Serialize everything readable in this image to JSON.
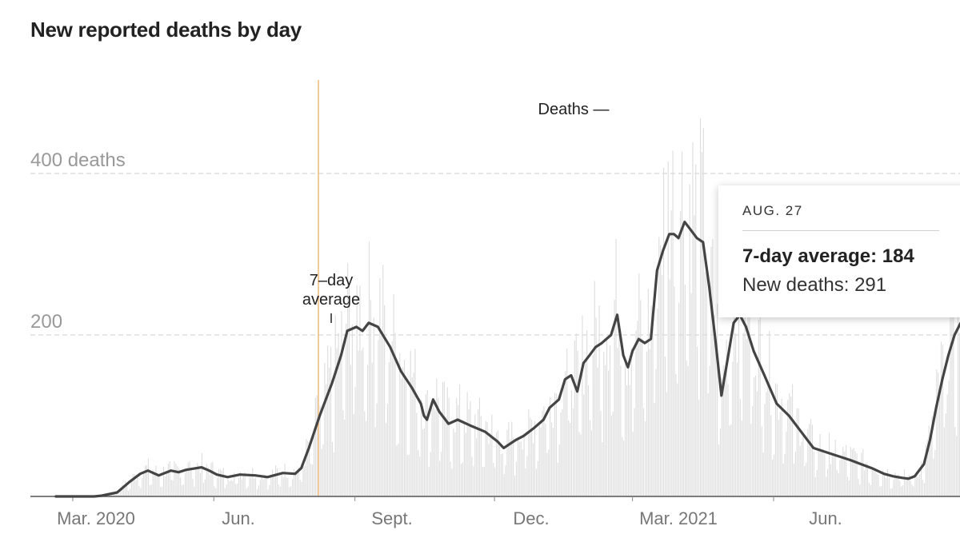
{
  "title": "New reported deaths by day",
  "tooltip": {
    "date": "AUG. 27",
    "avg_label": "7-day average: 184",
    "new_label": "New deaths: 291"
  },
  "chart_data": {
    "type": "bar",
    "title": "New reported deaths by day",
    "y_unit_label": "deaths",
    "ylim": [
      0,
      500
    ],
    "y_ticks": [
      {
        "value": 400,
        "label": "400 deaths"
      },
      {
        "value": 200,
        "label": "200"
      }
    ],
    "x_ticks": [
      {
        "day": 11,
        "label": "Mar. 2020"
      },
      {
        "day": 103,
        "label": "Jun."
      },
      {
        "day": 195,
        "label": "Sept."
      },
      {
        "day": 286,
        "label": "Dec."
      },
      {
        "day": 376,
        "label": "Mar. 2021"
      },
      {
        "day": 468,
        "label": "Jun."
      }
    ],
    "x_range_days": [
      -2,
      556
    ],
    "x_origin_date": "2020-02-20",
    "grid": "horizontal dashed",
    "series": [
      {
        "name": "Deaths",
        "style": "bars",
        "color": "#dddddd"
      },
      {
        "name": "7-day average",
        "style": "line",
        "color": "#444444",
        "points": [
          [
            0,
            0
          ],
          [
            25,
            0
          ],
          [
            30,
            1
          ],
          [
            40,
            5
          ],
          [
            48,
            18
          ],
          [
            55,
            28
          ],
          [
            60,
            32
          ],
          [
            67,
            26
          ],
          [
            75,
            32
          ],
          [
            80,
            30
          ],
          [
            85,
            33
          ],
          [
            95,
            36
          ],
          [
            100,
            32
          ],
          [
            105,
            27
          ],
          [
            112,
            24
          ],
          [
            120,
            27
          ],
          [
            130,
            26
          ],
          [
            138,
            24
          ],
          [
            148,
            29
          ],
          [
            156,
            28
          ],
          [
            160,
            35
          ],
          [
            165,
            60
          ],
          [
            172,
            100
          ],
          [
            180,
            140
          ],
          [
            186,
            175
          ],
          [
            190,
            205
          ],
          [
            196,
            210
          ],
          [
            200,
            205
          ],
          [
            204,
            215
          ],
          [
            210,
            210
          ],
          [
            218,
            185
          ],
          [
            225,
            155
          ],
          [
            232,
            135
          ],
          [
            238,
            115
          ],
          [
            240,
            100
          ],
          [
            242,
            95
          ],
          [
            246,
            120
          ],
          [
            250,
            105
          ],
          [
            256,
            90
          ],
          [
            262,
            95
          ],
          [
            270,
            88
          ],
          [
            280,
            80
          ],
          [
            288,
            68
          ],
          [
            292,
            60
          ],
          [
            300,
            70
          ],
          [
            305,
            75
          ],
          [
            312,
            85
          ],
          [
            318,
            95
          ],
          [
            322,
            110
          ],
          [
            328,
            120
          ],
          [
            332,
            145
          ],
          [
            336,
            150
          ],
          [
            340,
            130
          ],
          [
            344,
            165
          ],
          [
            348,
            175
          ],
          [
            352,
            185
          ],
          [
            356,
            190
          ],
          [
            362,
            200
          ],
          [
            366,
            225
          ],
          [
            370,
            175
          ],
          [
            373,
            160
          ],
          [
            376,
            180
          ],
          [
            380,
            195
          ],
          [
            384,
            190
          ],
          [
            388,
            195
          ],
          [
            392,
            280
          ],
          [
            396,
            305
          ],
          [
            400,
            325
          ],
          [
            403,
            325
          ],
          [
            406,
            320
          ],
          [
            410,
            340
          ],
          [
            414,
            330
          ],
          [
            418,
            320
          ],
          [
            422,
            315
          ],
          [
            426,
            260
          ],
          [
            430,
            195
          ],
          [
            434,
            125
          ],
          [
            438,
            170
          ],
          [
            442,
            215
          ],
          [
            446,
            225
          ],
          [
            450,
            210
          ],
          [
            455,
            180
          ],
          [
            462,
            150
          ],
          [
            470,
            115
          ],
          [
            478,
            100
          ],
          [
            486,
            80
          ],
          [
            494,
            60
          ],
          [
            502,
            55
          ],
          [
            510,
            50
          ],
          [
            518,
            45
          ],
          [
            525,
            40
          ],
          [
            532,
            35
          ],
          [
            540,
            28
          ],
          [
            546,
            25
          ],
          [
            552,
            23
          ],
          [
            556,
            22
          ],
          [
            560,
            25
          ],
          [
            566,
            40
          ],
          [
            570,
            70
          ],
          [
            574,
            110
          ],
          [
            578,
            145
          ],
          [
            582,
            175
          ],
          [
            586,
            200
          ],
          [
            590,
            215
          ],
          [
            594,
            218
          ]
        ]
      }
    ],
    "annotations": [
      {
        "text": "7–day",
        "day": 209
      },
      {
        "text": "average",
        "day": 209
      },
      {
        "text": "Deaths —",
        "day": 375
      }
    ]
  }
}
